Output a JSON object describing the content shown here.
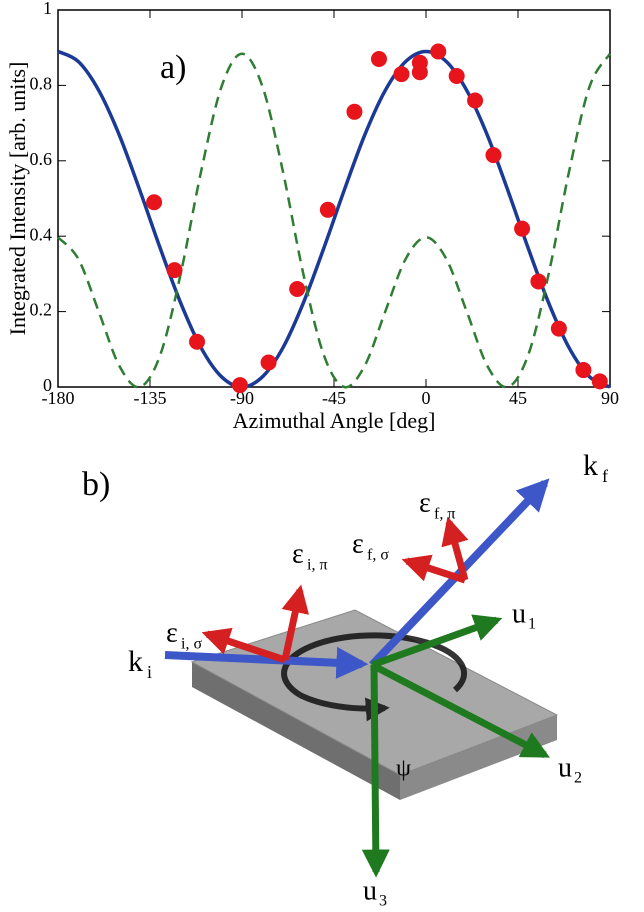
{
  "chart_data": {
    "type": "line",
    "annotation": "a)",
    "x_label": "Azimuthal Angle [deg]",
    "y_label": "Integrated Intensity [arb. units]",
    "xlim": [
      -180,
      90
    ],
    "ylim": [
      0,
      1
    ],
    "xticks": [
      -180,
      -135,
      -90,
      -45,
      0,
      45,
      90
    ],
    "yticks": [
      0,
      0.2,
      0.4,
      0.6,
      0.8,
      1
    ],
    "series": [
      {
        "type": "line",
        "style": "solid",
        "color": "#1b3a96",
        "x": [
          -180,
          -170,
          -160,
          -150,
          -140,
          -130,
          -120,
          -110,
          -100,
          -90,
          -80,
          -70,
          -60,
          -50,
          -40,
          -30,
          -20,
          -10,
          0,
          10,
          20,
          30,
          40,
          50,
          60,
          70,
          80,
          90
        ],
        "values": [
          0.89,
          0.863,
          0.786,
          0.668,
          0.522,
          0.368,
          0.223,
          0.104,
          0.027,
          0,
          0.027,
          0.104,
          0.223,
          0.368,
          0.522,
          0.668,
          0.786,
          0.863,
          0.89,
          0.863,
          0.786,
          0.668,
          0.522,
          0.368,
          0.223,
          0.104,
          0.027,
          0
        ]
      },
      {
        "type": "line",
        "style": "dashed",
        "color": "#2e7d32",
        "x": [
          -180,
          -170,
          -160,
          -150,
          -140,
          -130,
          -120,
          -110,
          -100,
          -90,
          -80,
          -70,
          -60,
          -50,
          -40,
          -30,
          -20,
          -10,
          0,
          10,
          20,
          30,
          40,
          50,
          60,
          70,
          80,
          90
        ],
        "values": [
          0.397,
          0.339,
          0.199,
          0.056,
          0,
          0.085,
          0.3,
          0.572,
          0.797,
          0.884,
          0.797,
          0.572,
          0.3,
          0.085,
          0,
          0.056,
          0.199,
          0.339,
          0.397,
          0.339,
          0.199,
          0.056,
          0,
          0.085,
          0.3,
          0.572,
          0.797,
          0.884
        ]
      },
      {
        "type": "scatter",
        "color": "#e8141c",
        "x": [
          -133,
          -123,
          -112,
          -91,
          -77,
          -63,
          -48,
          -35,
          -23,
          -12,
          -3,
          -3,
          6,
          15,
          24,
          33,
          47,
          55,
          65,
          77,
          85
        ],
        "values": [
          0.49,
          0.31,
          0.12,
          0.005,
          0.065,
          0.26,
          0.47,
          0.73,
          0.87,
          0.83,
          0.835,
          0.86,
          0.89,
          0.825,
          0.76,
          0.615,
          0.42,
          0.28,
          0.155,
          0.045,
          0.015
        ]
      }
    ]
  },
  "diagram": {
    "label": "b)",
    "vectors": [
      {
        "symbol": "k",
        "subscript": "i"
      },
      {
        "symbol": "k",
        "subscript": "f"
      },
      {
        "symbol": "u",
        "subscript": "1"
      },
      {
        "symbol": "u",
        "subscript": "2"
      },
      {
        "symbol": "u",
        "subscript": "3"
      },
      {
        "symbol": "ε",
        "subscript": "i, π"
      },
      {
        "symbol": "ε",
        "subscript": "i, σ"
      },
      {
        "symbol": "ε",
        "subscript": "f, π"
      },
      {
        "symbol": "ε",
        "subscript": "f, σ"
      }
    ],
    "rotation": "ψ"
  }
}
